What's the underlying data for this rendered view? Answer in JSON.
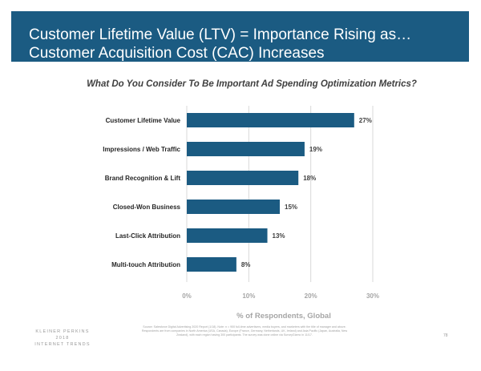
{
  "header": {
    "title_line1": "Customer Lifetime Value (LTV) = Importance Rising as…",
    "title_line2": "Customer Acquisition Cost (CAC) Increases"
  },
  "chart_data": {
    "type": "bar",
    "orientation": "horizontal",
    "title": "What Do You Consider To Be Important Ad Spending Optimization Metrics?",
    "categories": [
      "Customer Lifetime Value",
      "Impressions / Web Traffic",
      "Brand Recognition & Lift",
      "Closed-Won Business",
      "Last-Click Attribution",
      "Multi-touch Attribution"
    ],
    "values": [
      27,
      19,
      18,
      15,
      13,
      8
    ],
    "value_labels": [
      "27%",
      "19%",
      "18%",
      "15%",
      "13%",
      "8%"
    ],
    "xlabel": "% of Respondents, Global",
    "ylabel": "",
    "xlim": [
      0,
      30
    ],
    "xticks": [
      0,
      10,
      20,
      30
    ],
    "xtick_labels": [
      "0%",
      "10%",
      "20%",
      "30%"
    ],
    "grid": true,
    "bar_color": "#1b5b82"
  },
  "footer": {
    "logo_line1": "KLEINER PERKINS",
    "logo_line2": "2018",
    "logo_line3": "INTERNET TRENDS",
    "source_text": "Source: Salesforce Digital Advertising 2020 Report (1/18). Note: n = 900 full-time advertisers, media buyers, and marketers with the title of manager and above. Respondents are from companies in North America (USA, Canada), Europe (France, Germany, Netherlands, UK, Ireland) and Asia Pacific (Japan, Australia, New Zealand), with each region having 300 participants. The survey was done online via SurveyGizmo in 11/17.",
    "page_number": "78"
  }
}
